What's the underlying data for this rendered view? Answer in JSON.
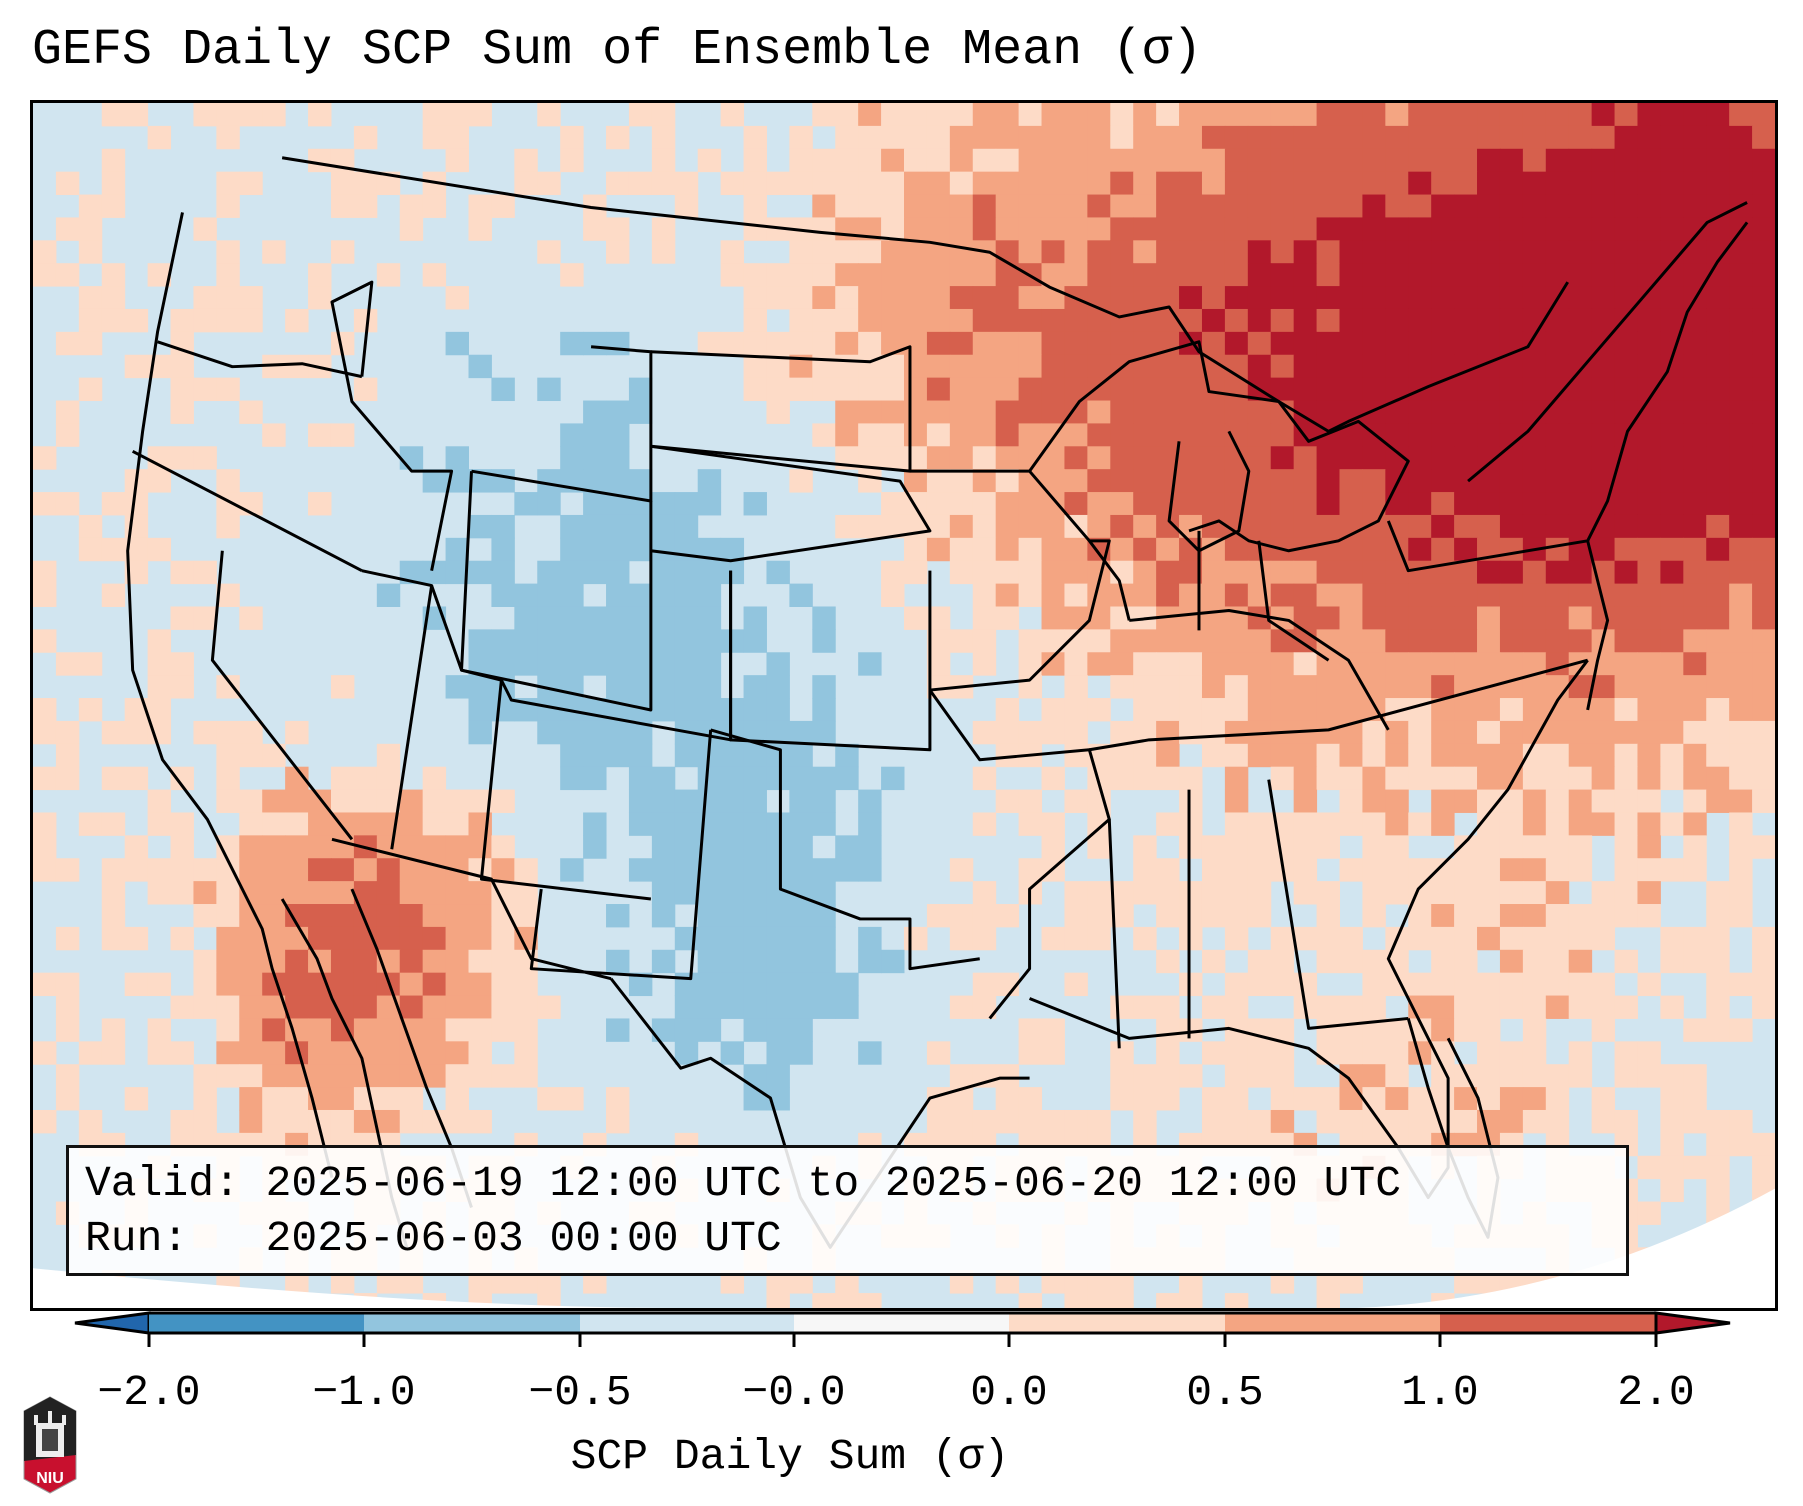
{
  "title": "GEFS Daily SCP Sum of Ensemble Mean (σ)",
  "info_box": {
    "valid_line": "Valid: 2025-06-19 12:00 UTC to 2025-06-20 12:00 UTC",
    "run_line": "Run:   2025-06-03 00:00 UTC"
  },
  "colorbar": {
    "label": "SCP Daily Sum (σ)",
    "ticks": [
      "−2.0",
      "−1.0",
      "−0.5",
      "−0.0",
      "0.0",
      "0.5",
      "1.0",
      "2.0"
    ],
    "bins": [
      {
        "range": "< -2.0",
        "color": "#2166ac"
      },
      {
        "range": "-2.0 to -1.0",
        "color": "#4393c3"
      },
      {
        "range": "-1.0 to -0.5",
        "color": "#92c5de"
      },
      {
        "range": "-0.5 to -0.0",
        "color": "#d1e5f0"
      },
      {
        "range": "-0.0 to 0.0",
        "color": "#f7f7f7"
      },
      {
        "range": "0.0 to 0.5",
        "color": "#fddbc7"
      },
      {
        "range": "0.5 to 1.0",
        "color": "#f4a582"
      },
      {
        "range": "1.0 to 2.0",
        "color": "#d6604d"
      },
      {
        "range": "> 2.0",
        "color": "#b2182b"
      }
    ],
    "extend": "both"
  },
  "logo": {
    "text": "NIU",
    "name": "Northern Illinois University"
  },
  "map": {
    "region": "Contiguous United States",
    "projection": "Lambert Conformal",
    "ocean_fill": "#d1e5f0",
    "features": [
      "state borders",
      "coastlines",
      "country borders"
    ],
    "regional_summary": [
      {
        "region": "Upper Midwest / Great Lakes / Northeast / SE Canada",
        "category": "0.5 to >2.0"
      },
      {
        "region": "Northern Plains (Dakotas, Minnesota)",
        "category": "0.0 to 0.5"
      },
      {
        "region": "Rockies / Great Basin / Southern Plains / Texas",
        "category": "-1.0 to -0.0"
      },
      {
        "region": "Southeast / Gulf coast",
        "category": "-0.5 to -0.0"
      },
      {
        "region": "Baja California / Arizona / Gulf of California",
        "category": "0.0 to 2.0"
      },
      {
        "region": "Atlantic / Gulf of Mexico",
        "category": "0.0 to 0.5"
      }
    ]
  }
}
